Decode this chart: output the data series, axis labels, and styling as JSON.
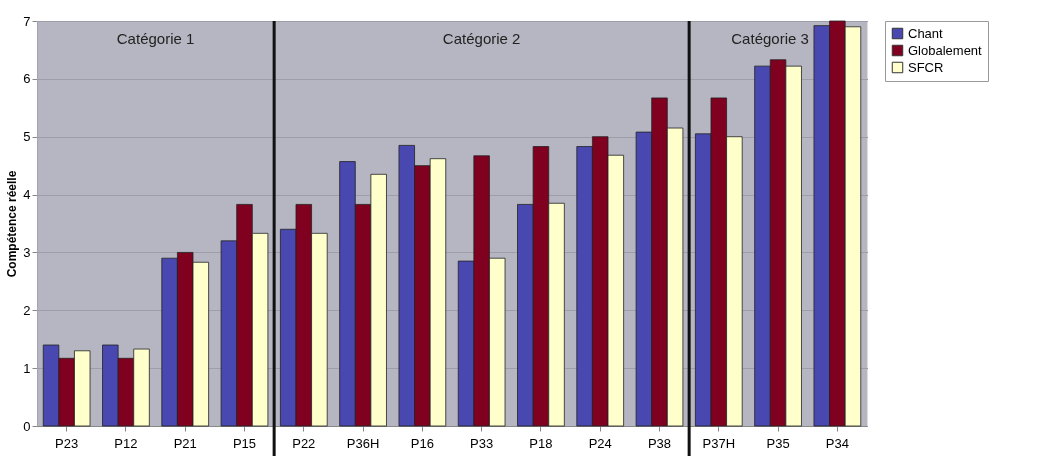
{
  "chart_data": {
    "type": "bar",
    "ylabel": "Compétence réelle",
    "categories": [
      "P23",
      "P12",
      "P21",
      "P15",
      "P22",
      "P36H",
      "P16",
      "P33",
      "P18",
      "P24",
      "P38",
      "P37H",
      "P35",
      "P34"
    ],
    "series": [
      {
        "name": "Chant",
        "color": "#4848b0",
        "values": [
          1.4,
          1.4,
          2.9,
          3.2,
          3.4,
          4.57,
          4.85,
          2.85,
          3.83,
          4.83,
          5.08,
          5.05,
          6.22,
          6.92
        ]
      },
      {
        "name": "Globalement",
        "color": "#800020",
        "values": [
          1.17,
          1.17,
          3.0,
          3.83,
          3.83,
          3.83,
          4.5,
          4.67,
          4.83,
          5.0,
          5.67,
          5.67,
          6.33,
          7.0
        ]
      },
      {
        "name": "SFCR",
        "color": "#ffffcc",
        "values": [
          1.3,
          1.33,
          2.83,
          3.33,
          3.33,
          4.35,
          4.62,
          2.9,
          3.85,
          4.68,
          5.15,
          5.0,
          6.22,
          6.9
        ]
      }
    ],
    "bands": [
      {
        "axis": "x",
        "from": "P23",
        "to": "P15",
        "label": "Catégorie 1",
        "color": "#a8a9b6"
      },
      {
        "axis": "x",
        "from": "P22",
        "to": "P38",
        "label": "Catégorie 2",
        "color": "#a8a9b6"
      },
      {
        "axis": "x",
        "from": "P37H",
        "to": "P34",
        "label": "Catégorie 3",
        "color": "#a8a9b6"
      }
    ],
    "ylim": [
      0,
      7
    ],
    "yticks": [
      0,
      1,
      2,
      3,
      4,
      5,
      6,
      7
    ],
    "grid": "y",
    "legend": "right"
  }
}
